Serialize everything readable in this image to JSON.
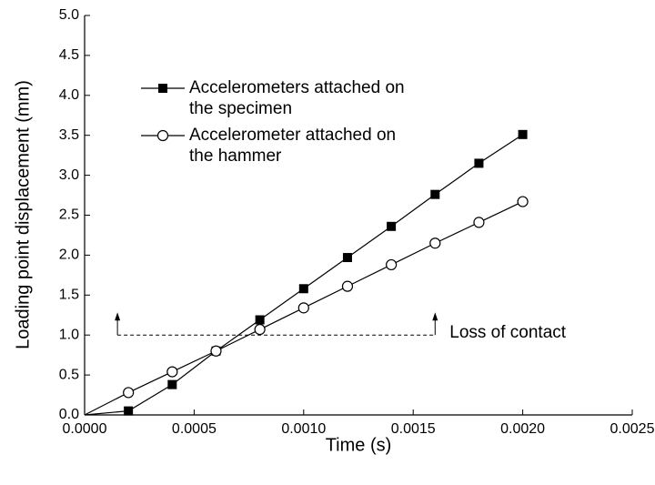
{
  "chart_data": {
    "type": "line",
    "xlabel": "Time (s)",
    "ylabel": "Loading point displacement (mm)",
    "xlim": [
      0,
      0.0025
    ],
    "ylim": [
      0,
      5.0
    ],
    "xticks": [
      {
        "value": 0,
        "label": "0.0000"
      },
      {
        "value": 0.0005,
        "label": "0.0005"
      },
      {
        "value": 0.001,
        "label": "0.0010"
      },
      {
        "value": 0.0015,
        "label": "0.0015"
      },
      {
        "value": 0.002,
        "label": "0.0020"
      },
      {
        "value": 0.0025,
        "label": "0.0025"
      }
    ],
    "yticks": [
      {
        "value": 0,
        "label": "0.0"
      },
      0.5,
      {
        "value": 1,
        "label": "1.0"
      },
      1.5,
      {
        "value": 2,
        "label": "2.0"
      },
      2.5,
      {
        "value": 3,
        "label": "3.0"
      },
      3.5,
      {
        "value": 4,
        "label": "4.0"
      },
      4.5,
      {
        "value": 5,
        "label": "5.0"
      }
    ],
    "x": [
      0,
      0.0002,
      0.0004,
      0.0006,
      0.0008,
      0.001,
      0.0012,
      0.0014,
      0.0016,
      0.0018,
      0.002
    ],
    "series": [
      {
        "name": "Accelerometers attached on the specimen",
        "color": "#000000",
        "marker": "square",
        "values": [
          0,
          0.05,
          0.38,
          0.8,
          1.19,
          1.58,
          1.97,
          2.36,
          2.76,
          3.15,
          3.51
        ]
      },
      {
        "name": "Accelerometer attached on the hammer",
        "color": "#000000",
        "marker": "open-circle",
        "values": [
          0,
          0.28,
          0.54,
          0.8,
          1.07,
          1.34,
          1.61,
          1.88,
          2.15,
          2.41,
          2.67
        ]
      }
    ],
    "annotation": {
      "text": "Loss of contact",
      "y": 1.0,
      "x": [
        0.00015,
        0.0016
      ]
    }
  }
}
